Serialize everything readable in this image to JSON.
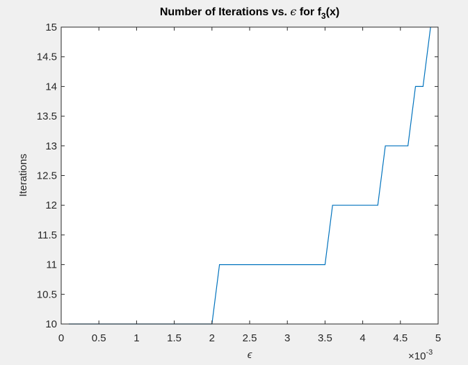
{
  "chart_data": {
    "type": "line",
    "title_main": "Number of Iterations vs. ",
    "title_symbol": "ϵ",
    "title_mid": " for f",
    "title_sub": "3",
    "title_end": "(x)",
    "xlabel": "ϵ",
    "ylabel": "Iterations",
    "xlim": [
      0,
      0.005
    ],
    "ylim": [
      10,
      15
    ],
    "x_exponent_base": "×10",
    "x_exponent_power": "-3",
    "x_tick_labels": [
      "0",
      "0.5",
      "1",
      "1.5",
      "2",
      "2.5",
      "3",
      "3.5",
      "4",
      "4.5",
      "5"
    ],
    "y_tick_labels": [
      "10",
      "10.5",
      "11",
      "11.5",
      "12",
      "12.5",
      "13",
      "13.5",
      "14",
      "14.5",
      "15"
    ],
    "grid": false,
    "series": [
      {
        "color": "#0072bd",
        "x": [
          0.0001,
          0.0002,
          0.0003,
          0.0004,
          0.0005,
          0.0006,
          0.0007,
          0.0008,
          0.0009,
          0.001,
          0.0011,
          0.0012,
          0.0013,
          0.0014,
          0.0015,
          0.0016,
          0.0017,
          0.0018,
          0.0019,
          0.002,
          0.0021,
          0.0022,
          0.0023,
          0.0024,
          0.0025,
          0.0026,
          0.0027,
          0.0028,
          0.0029,
          0.003,
          0.0031,
          0.0032,
          0.0033,
          0.0034,
          0.0035,
          0.0036,
          0.0037,
          0.0038,
          0.0039,
          0.004,
          0.0041,
          0.0042,
          0.0043,
          0.0044,
          0.0045,
          0.0046,
          0.0047,
          0.0048,
          0.0049
        ],
        "y": [
          10,
          10,
          10,
          10,
          10,
          10,
          10,
          10,
          10,
          10,
          10,
          10,
          10,
          10,
          10,
          10,
          10,
          10,
          10,
          10,
          11,
          11,
          11,
          11,
          11,
          11,
          11,
          11,
          11,
          11,
          11,
          11,
          11,
          11,
          11,
          12,
          12,
          12,
          12,
          12,
          12,
          12,
          13,
          13,
          13,
          13,
          14,
          14,
          15
        ]
      }
    ]
  }
}
